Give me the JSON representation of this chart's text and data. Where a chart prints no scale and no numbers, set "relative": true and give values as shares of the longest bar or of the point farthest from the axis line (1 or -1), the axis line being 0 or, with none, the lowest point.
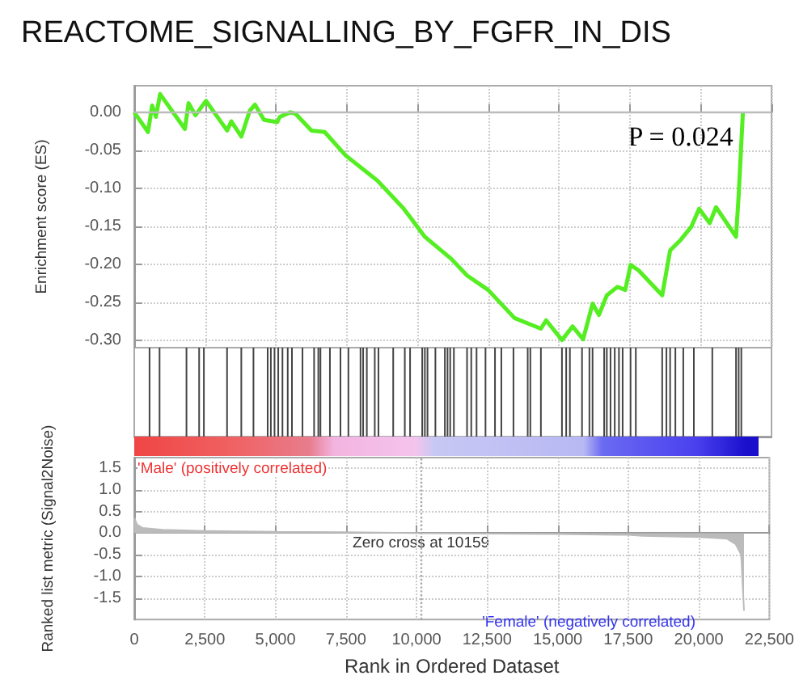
{
  "chart_data": [
    {
      "type": "line",
      "title": "REACTOME_SIGNALLING_BY_FGFR_IN_DIS",
      "ylabel": "Enrichment score (ES)",
      "xlim": [
        0,
        22500
      ],
      "xticks": [
        0,
        2500,
        5000,
        7500,
        10000,
        12500,
        15000,
        17500,
        20000,
        22500
      ],
      "ylim": [
        -0.31,
        0.035
      ],
      "yticks": [
        {
          "value": -0.3,
          "label": "-0.30"
        },
        {
          "value": -0.25,
          "label": "-0.25"
        },
        {
          "value": -0.2,
          "label": "-0.20"
        },
        {
          "value": -0.15,
          "label": "-0.15"
        },
        {
          "value": -0.1,
          "label": "-0.10"
        },
        {
          "value": -0.05,
          "label": "-0.05"
        },
        {
          "value": 0,
          "label": "0.00"
        }
      ],
      "tick_labels": "y",
      "grid": true,
      "ref_lines": [
        {
          "axis": "y",
          "value": 0,
          "color": "#bbbbbb"
        }
      ],
      "annotations": [
        "P = 0.024"
      ],
      "series": [
        {
          "color": "#55ee22",
          "x": [
            0,
            485,
            633,
            764,
            913,
            1788,
            1918,
            2160,
            2533,
            3278,
            3427,
            3780,
            4078,
            4264,
            4581,
            5047,
            5140,
            5512,
            5698,
            6257,
            6722,
            7467,
            8212,
            8585,
            9516,
            10261,
            11192,
            11751,
            12496,
            13427,
            13892,
            14358,
            14544,
            15103,
            15475,
            15848,
            16183,
            16407,
            16686,
            17058,
            17337,
            17524,
            17803,
            18641,
            18920,
            19293,
            19665,
            19945,
            20317,
            20541,
            21248,
            21341,
            21490
          ],
          "values": [
            0,
            -0.026,
            0.009,
            -0.006,
            0.024,
            -0.022,
            0.012,
            -0.004,
            0.015,
            -0.024,
            -0.012,
            -0.032,
            0.002,
            0.01,
            -0.01,
            -0.013,
            -0.006,
            0,
            -0.002,
            -0.024,
            -0.026,
            -0.057,
            -0.079,
            -0.09,
            -0.127,
            -0.164,
            -0.193,
            -0.215,
            -0.234,
            -0.271,
            -0.278,
            -0.285,
            -0.274,
            -0.3,
            -0.282,
            -0.299,
            -0.252,
            -0.267,
            -0.241,
            -0.23,
            -0.234,
            -0.201,
            -0.208,
            -0.241,
            -0.182,
            -0.168,
            -0.151,
            -0.127,
            -0.146,
            -0.125,
            -0.164,
            -0.109,
            0
          ]
        }
      ]
    },
    {
      "type": "bar",
      "relative": true,
      "xlim": [
        0,
        22500
      ],
      "tick_labels": false,
      "series": [
        {
          "color": "#444444",
          "x": [
            540,
            894,
            1844,
            2291,
            2458,
            3277,
            3780,
            4209,
            4711,
            4823,
            4953,
            5084,
            5233,
            5419,
            5568,
            5940,
            6350,
            6499,
            6574,
            6909,
            7281,
            7561,
            7989,
            8082,
            8212,
            8492,
            8622,
            9143,
            9553,
            9739,
            10168,
            10261,
            10354,
            10633,
            10968,
            11061,
            11155,
            11285,
            11750,
            11899,
            12086,
            12402,
            12737,
            12961,
            13389,
            13892,
            13985,
            14358,
            15102,
            15251,
            15382,
            15810,
            16071,
            16182,
            16592,
            16685,
            16816,
            16965,
            17114,
            17244,
            17523,
            17709,
            18641,
            18790,
            18920,
            19106,
            19385,
            19758,
            20410,
            21248,
            21341,
            21434
          ],
          "values": [
            1,
            1,
            1,
            1,
            1,
            1,
            1,
            1,
            1,
            1,
            1,
            1,
            1,
            1,
            1,
            1,
            1,
            1,
            1,
            1,
            1,
            1,
            1,
            1,
            1,
            1,
            1,
            1,
            1,
            1,
            1,
            1,
            1,
            1,
            1,
            1,
            1,
            1,
            1,
            1,
            1,
            1,
            1,
            1,
            1,
            1,
            1,
            1,
            1,
            1,
            1,
            1,
            1,
            1,
            1,
            1,
            1,
            1,
            1,
            1,
            1,
            1,
            1,
            1,
            1,
            1,
            1,
            1,
            1,
            1,
            1,
            1
          ]
        }
      ]
    },
    {
      "type": "area",
      "xlabel": "Rank in Ordered Dataset",
      "ylabel": "Ranked list metric (Signal2Noise)",
      "xlim": [
        0,
        22500
      ],
      "xticks": [
        0,
        {
          "value": 2500,
          "label": "2,500"
        },
        {
          "value": 5000,
          "label": "5,000"
        },
        {
          "value": 7500,
          "label": "7,500"
        },
        {
          "value": 10000,
          "label": "10,000"
        },
        {
          "value": 12500,
          "label": "12,500"
        },
        {
          "value": 15000,
          "label": "15,000"
        },
        {
          "value": 17500,
          "label": "17,500"
        },
        {
          "value": 20000,
          "label": "20,000"
        },
        {
          "value": 22500,
          "label": "22,500"
        }
      ],
      "ylim": [
        -2.0,
        1.75
      ],
      "yticks": [
        -1.5,
        {
          "value": -1,
          "label": "-1.0"
        },
        -0.5,
        {
          "value": 0,
          "label": "0.0"
        },
        0.5,
        {
          "value": 1,
          "label": "1.0"
        },
        1.5
      ],
      "grid": true,
      "ref_lines": [
        {
          "axis": "x",
          "value": 10159,
          "line_style": "dotted",
          "color": "#aaaaaa"
        }
      ],
      "annotations": [
        "'Male' (positively correlated)",
        {
          "text": "Zero cross at 10159",
          "x": 10159,
          "y": -0.05
        },
        "'Female' (negatively correlated)"
      ],
      "series": [
        {
          "color": "#bbbbbb",
          "x": [
            0,
            100,
            300,
            1000,
            2500,
            5000,
            7500,
            10159,
            12500,
            15000,
            17500,
            18000,
            20000,
            21000,
            21300,
            21500,
            21600
          ],
          "values": [
            0.35,
            0.2,
            0.12,
            0.08,
            0.05,
            0.03,
            0.02,
            0,
            -0.01,
            -0.02,
            -0.04,
            -0.06,
            -0.09,
            -0.13,
            -0.25,
            -0.5,
            -1.8
          ]
        }
      ]
    }
  ]
}
